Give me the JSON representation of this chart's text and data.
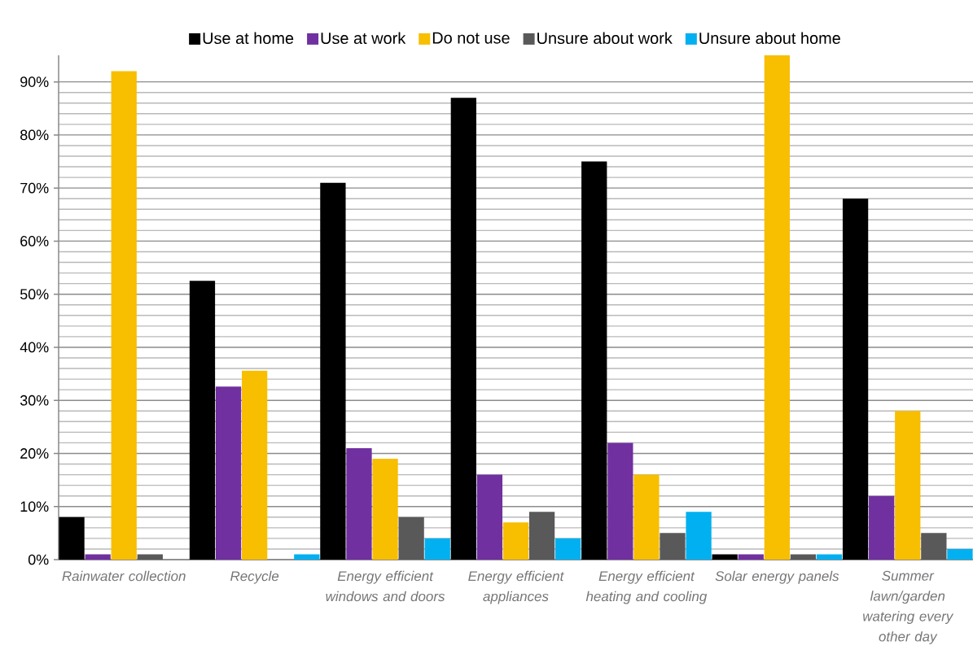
{
  "chart_data": {
    "type": "bar",
    "categories": [
      "Rainwater collection",
      "Recycle",
      "Energy efficient windows and doors",
      "Energy efficient appliances",
      "Energy efficient heating and cooling",
      "Solar energy panels",
      "Summer lawn/garden watering every other day"
    ],
    "series": [
      {
        "name": "Use at home",
        "color": "#000000",
        "values": [
          8,
          52.5,
          71,
          87,
          75,
          1,
          68
        ]
      },
      {
        "name": "Use at work",
        "color": "#7030a0",
        "values": [
          1,
          32.6,
          21,
          16,
          22,
          1,
          12
        ]
      },
      {
        "name": "Do not use",
        "color": "#f8be00",
        "values": [
          92,
          35.6,
          19,
          7,
          16,
          95,
          28
        ]
      },
      {
        "name": "Unsure about work",
        "color": "#595959",
        "values": [
          1,
          null,
          8,
          9,
          5,
          1,
          5
        ]
      },
      {
        "name": "Unsure about home",
        "color": "#00b0f0",
        "values": [
          null,
          1,
          4,
          4,
          9,
          1,
          2
        ]
      }
    ],
    "ylim": [
      0,
      95
    ],
    "yticks": [
      {
        "value": 0,
        "label": "0%"
      },
      {
        "value": 10,
        "label": "10%"
      },
      {
        "value": 20,
        "label": "20%"
      },
      {
        "value": 30,
        "label": "30%"
      },
      {
        "value": 40,
        "label": "40%"
      },
      {
        "value": 50,
        "label": "50%"
      },
      {
        "value": 60,
        "label": "60%"
      },
      {
        "value": 70,
        "label": "70%"
      },
      {
        "value": 80,
        "label": "80%"
      },
      {
        "value": 90,
        "label": "90%"
      }
    ],
    "grid": "y",
    "legend": "top"
  }
}
